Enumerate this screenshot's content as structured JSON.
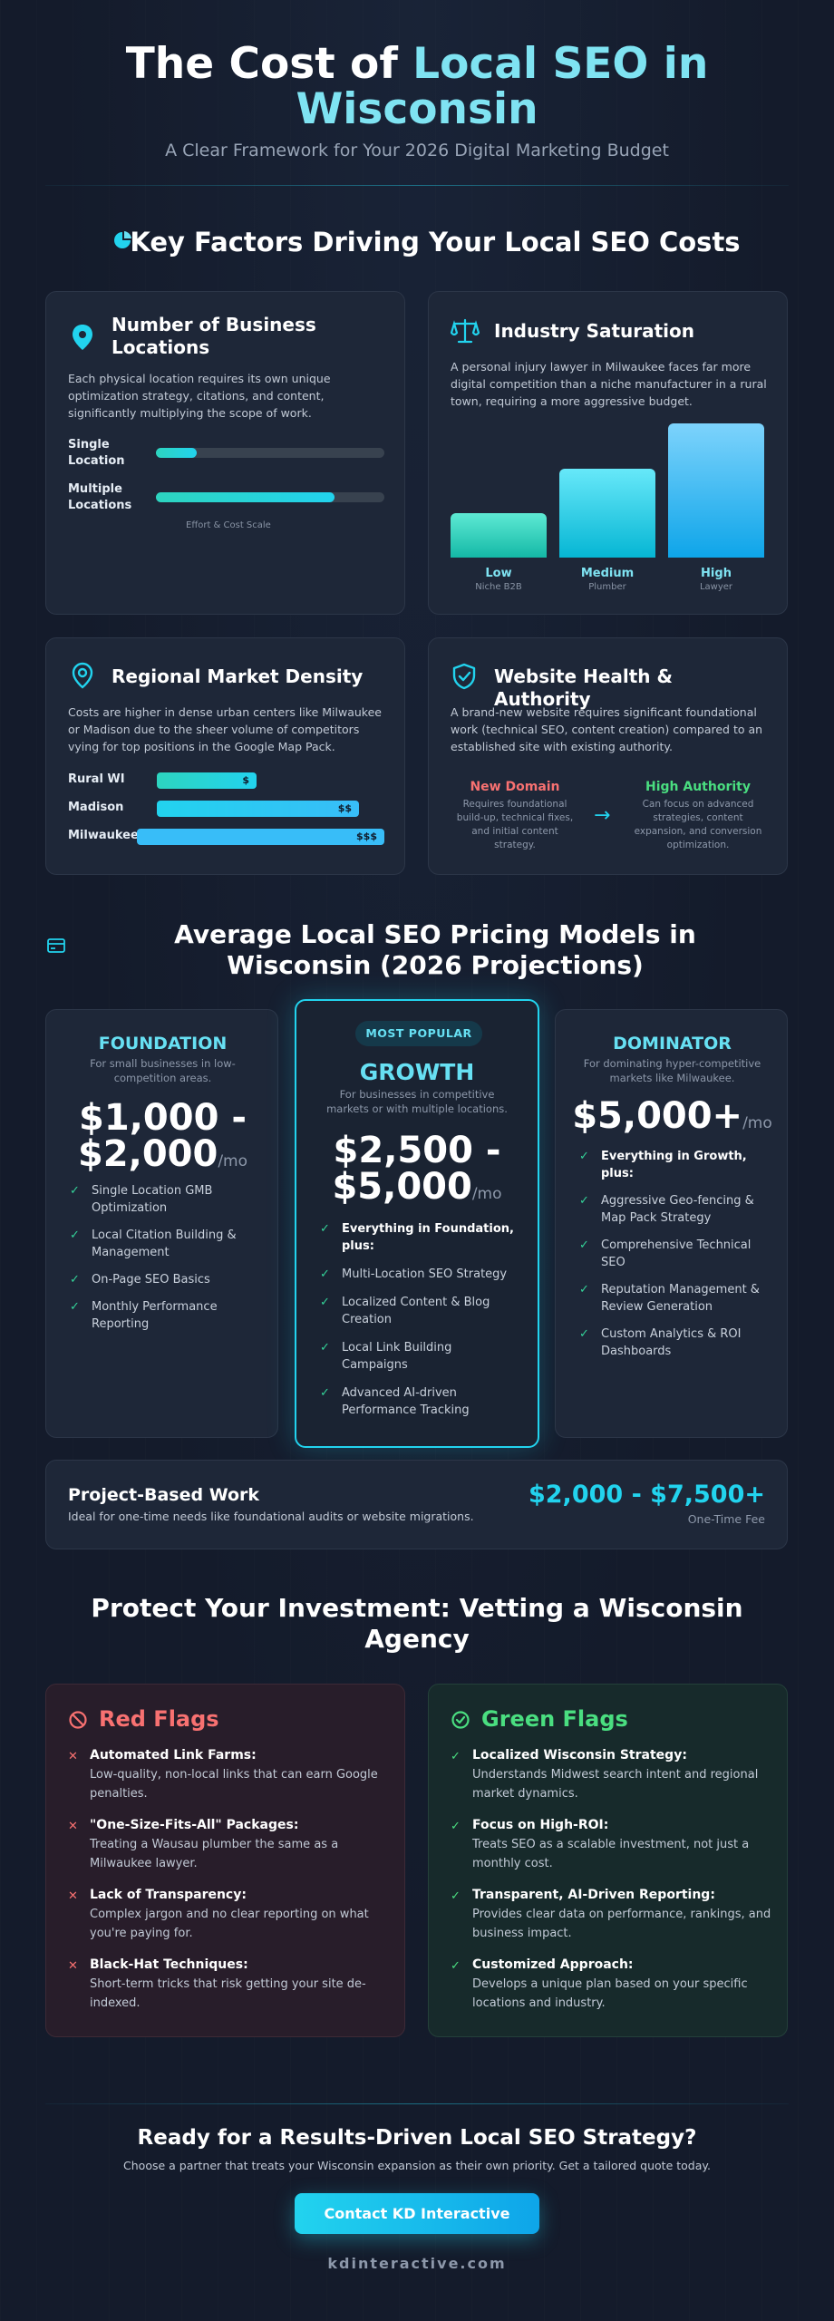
{
  "header": {
    "title_part1": "The Cost of ",
    "title_highlight": "Local SEO in Wisconsin",
    "subtitle": "A Clear Framework for Your 2026 Digital Marketing Budget"
  },
  "factors": {
    "heading": "Key Factors Driving Your Local SEO Costs",
    "locations": {
      "title": "Number of Business Locations",
      "text": "Each physical location requires its own unique optimization strategy, citations, and content, significantly multiplying the scope of work.",
      "rows": [
        {
          "label": "Single Location",
          "level": 0.18
        },
        {
          "label": "Multiple Locations",
          "level": 0.78
        }
      ],
      "caption": "Effort & Cost Scale"
    },
    "industry": {
      "title": "Industry Saturation",
      "text": "A personal injury lawyer in Milwaukee faces far more digital competition than a niche manufacturer in a rural town, requiring a more aggressive budget.",
      "bars": [
        {
          "label": "Low",
          "sub": "Niche B2B",
          "level": 0.33
        },
        {
          "label": "Medium",
          "sub": "Plumber",
          "level": 0.66
        },
        {
          "label": "High",
          "sub": "Lawyer",
          "level": 1.0
        }
      ]
    },
    "density": {
      "title": "Regional Market Density",
      "text": "Costs are higher in dense urban centers like Milwaukee or Madison due to the sheer volume of competitors vying for top positions in the Google Map Pack.",
      "rows": [
        {
          "label": "Rural WI",
          "value": "$",
          "level": 0.44
        },
        {
          "label": "Madison",
          "value": "$$",
          "level": 0.89
        },
        {
          "label": "Milwaukee",
          "value": "$$$",
          "level": 1.0
        }
      ]
    },
    "website": {
      "title": "Website Health & Authority",
      "text": "A brand-new website requires significant foundational work (technical SEO, content creation) compared to an established site with existing authority.",
      "new_label": "New Domain",
      "new_text": "Requires foundational build-up, technical fixes, and initial content strategy.",
      "arrow": "→",
      "high_label": "High Authority",
      "high_text": "Can focus on advanced strategies, content expansion, and conversion optimization."
    }
  },
  "pricing": {
    "heading": "Average Local SEO Pricing Models in Wisconsin (2026 Projections)",
    "tiers": [
      {
        "name": "FOUNDATION",
        "desc": "For small businesses in low-competition areas.",
        "price": "$1,000 - $2,000",
        "unit": "/mo",
        "features": [
          "Single Location GMB Optimization",
          "Local Citation Building & Management",
          "On-Page SEO Basics",
          "Monthly Performance Reporting"
        ]
      },
      {
        "badge": "MOST POPULAR",
        "name": "GROWTH",
        "desc": "For businesses in competitive markets or with multiple locations.",
        "price": "$2,500 - $5,000",
        "unit": "/mo",
        "features": [
          "Everything in Foundation, plus:",
          "Multi-Location SEO Strategy",
          "Localized Content & Blog Creation",
          "Local Link Building Campaigns",
          "Advanced AI-driven Performance Tracking"
        ]
      },
      {
        "name": "DOMINATOR",
        "desc": "For dominating hyper-competitive markets like Milwaukee.",
        "price": "$5,000+",
        "unit": "/mo",
        "features": [
          "Everything in Growth, plus:",
          "Aggressive Geo-fencing & Map Pack Strategy",
          "Comprehensive Technical SEO",
          "Reputation Management & Review Generation",
          "Custom Analytics & ROI Dashboards"
        ]
      }
    ],
    "project": {
      "title": "Project-Based Work",
      "text": "Ideal for one-time needs like foundational audits or website migrations.",
      "price": "$2,000 - $7,500+",
      "note": "One-Time Fee"
    }
  },
  "vetting": {
    "heading": "Protect Your Investment: Vetting a Wisconsin Agency",
    "red": {
      "title": "Red Flags",
      "items": [
        {
          "head": "Automated Link Farms:",
          "body": "Low-quality, non-local links that can earn Google penalties."
        },
        {
          "head": "\"One-Size-Fits-All\" Packages:",
          "body": "Treating a Wausau plumber the same as a Milwaukee lawyer."
        },
        {
          "head": "Lack of Transparency:",
          "body": "Complex jargon and no clear reporting on what you're paying for."
        },
        {
          "head": "Black-Hat Techniques:",
          "body": "Short-term tricks that risk getting your site de-indexed."
        }
      ]
    },
    "green": {
      "title": "Green Flags",
      "items": [
        {
          "head": "Localized Wisconsin Strategy:",
          "body": "Understands Midwest search intent and regional market dynamics."
        },
        {
          "head": "Focus on High-ROI:",
          "body": "Treats SEO as a scalable investment, not just a monthly cost."
        },
        {
          "head": "Transparent, AI-Driven Reporting:",
          "body": "Provides clear data on performance, rankings, and business impact."
        },
        {
          "head": "Customized Approach:",
          "body": "Develops a unique plan based on your specific locations and industry."
        }
      ]
    }
  },
  "cta": {
    "heading": "Ready for a Results-Driven Local SEO Strategy?",
    "text": "Choose a partner that treats your Wisconsin expansion as their own priority. Get a tailored quote today.",
    "button": "Contact KD Interactive",
    "site": "kdinteractive.com"
  },
  "colors": {
    "accent": "#22d3ee",
    "teal": "#2dd4bf",
    "red": "#f87171",
    "green": "#4ade80",
    "background": "#141b2b"
  }
}
